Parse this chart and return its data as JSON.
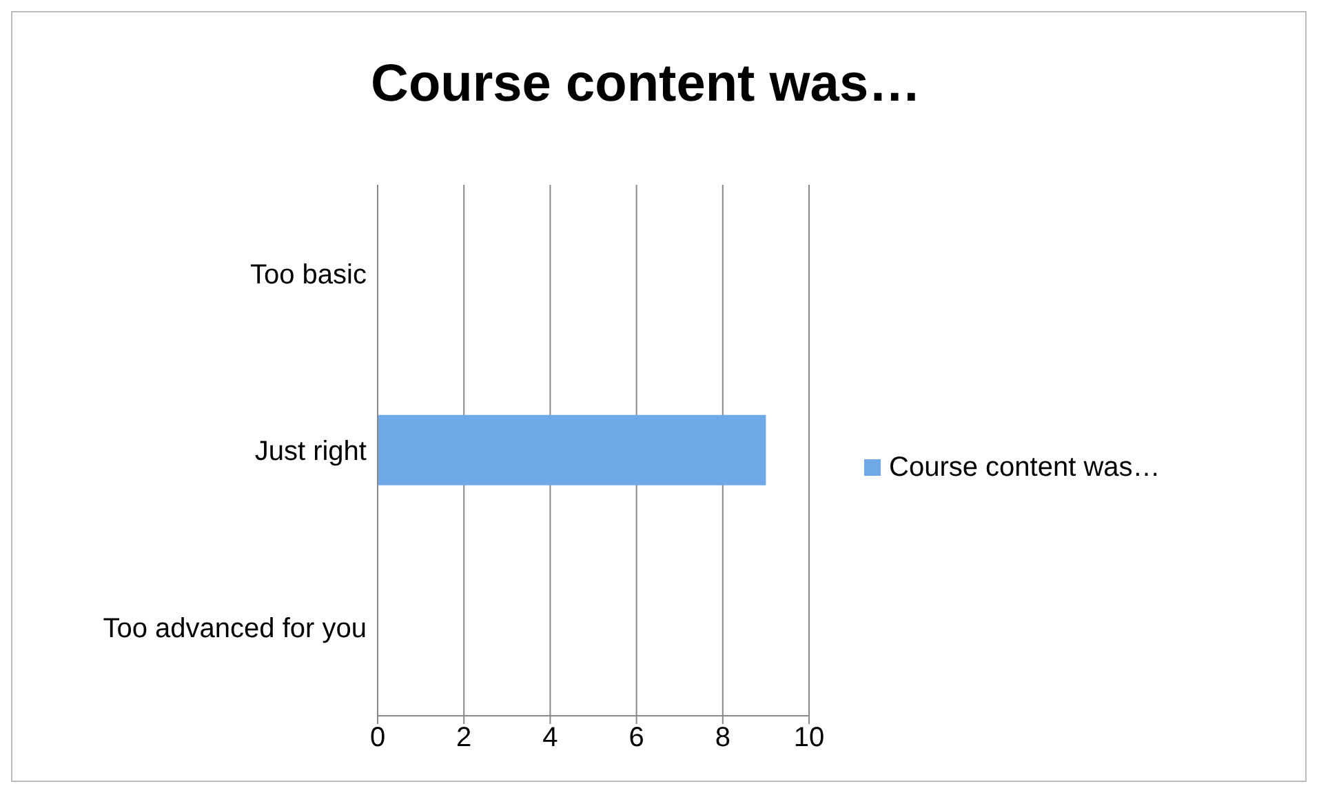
{
  "chart_data": {
    "type": "bar",
    "orientation": "horizontal",
    "title": "Course content was…",
    "categories": [
      "Too basic",
      "Just right",
      "Too advanced for you"
    ],
    "series": [
      {
        "name": "Course content was…",
        "color": "#6fa8e6",
        "values": [
          0,
          9,
          0
        ]
      }
    ],
    "xlim": [
      0,
      10
    ],
    "xticks": [
      0,
      2,
      4,
      6,
      8,
      10
    ],
    "grid": "x",
    "legend": "right"
  }
}
